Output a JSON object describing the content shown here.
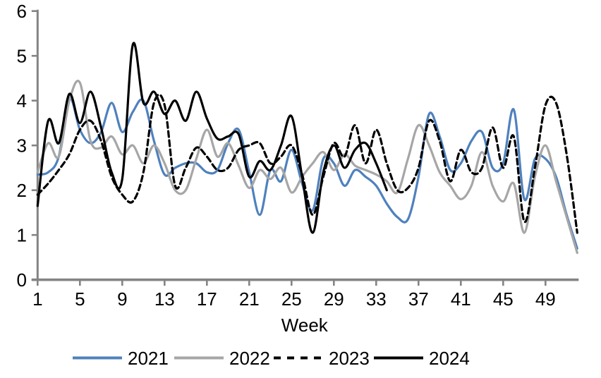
{
  "chart_data": {
    "type": "line",
    "title": "",
    "xlabel": "Week",
    "x_unit": "week",
    "x_range": [
      1,
      52
    ],
    "ylim": [
      0,
      6
    ],
    "x_tick_labels": [
      "1",
      "5",
      "9",
      "13",
      "17",
      "21",
      "25",
      "29",
      "33",
      "37",
      "41",
      "45",
      "49"
    ],
    "x_tick_weeks": [
      1,
      5,
      9,
      13,
      17,
      21,
      25,
      29,
      33,
      37,
      41,
      45,
      49
    ],
    "y_tick_labels": [
      "0",
      "1",
      "2",
      "3",
      "4",
      "5",
      "6"
    ],
    "y_tick_values": [
      0,
      1,
      2,
      3,
      4,
      5,
      6
    ],
    "grid": false,
    "legend_position": "bottom",
    "axis_color": "#848484",
    "series": [
      {
        "name": "2021",
        "color": "#4F81BD",
        "dash": "solid",
        "start_week": 1,
        "values": [
          2.35,
          2.4,
          2.75,
          4.05,
          3.35,
          3.05,
          3.3,
          3.95,
          3.3,
          3.75,
          4.0,
          3.1,
          2.35,
          2.5,
          2.6,
          2.6,
          2.4,
          2.45,
          3.05,
          3.35,
          2.4,
          1.45,
          2.45,
          2.2,
          2.9,
          2.15,
          1.55,
          2.7,
          2.6,
          2.1,
          2.45,
          2.3,
          2.1,
          1.7,
          1.4,
          1.35,
          2.3,
          3.7,
          3.2,
          2.45,
          2.6,
          3.1,
          3.3,
          2.5,
          2.6,
          3.8,
          1.8,
          2.7,
          2.7,
          2.3,
          1.45,
          0.7
        ]
      },
      {
        "name": "2022",
        "color": "#A6A6A6",
        "dash": "solid",
        "start_week": 1,
        "values": [
          2.4,
          3.05,
          2.75,
          4.0,
          4.4,
          3.1,
          2.95,
          3.2,
          2.8,
          3.0,
          2.6,
          3.0,
          2.6,
          2.0,
          2.0,
          2.7,
          3.35,
          2.75,
          3.05,
          2.55,
          2.05,
          2.45,
          2.25,
          2.5,
          1.95,
          2.3,
          2.6,
          2.85,
          2.45,
          2.8,
          2.55,
          2.45,
          2.35,
          2.2,
          1.95,
          2.7,
          3.45,
          3.0,
          2.4,
          2.1,
          1.8,
          2.1,
          2.85,
          2.1,
          1.75,
          2.15,
          1.05,
          2.3,
          3.0,
          2.2,
          1.4,
          0.6
        ]
      },
      {
        "name": "2023",
        "color": "#000000",
        "dash": "dashed",
        "start_week": 1,
        "values": [
          1.9,
          2.15,
          2.45,
          2.8,
          3.35,
          3.55,
          3.1,
          2.3,
          1.9,
          1.75,
          2.4,
          3.95,
          3.9,
          2.1,
          2.5,
          2.95,
          2.75,
          2.45,
          2.5,
          2.9,
          3.0,
          3.05,
          2.6,
          2.75,
          3.0,
          2.35,
          1.45,
          2.3,
          3.05,
          2.75,
          3.45,
          2.6,
          3.35,
          2.6,
          2.0,
          2.05,
          2.5,
          3.55,
          3.1,
          2.2,
          2.9,
          2.4,
          2.5,
          3.4,
          2.5,
          3.2,
          1.3,
          2.5,
          3.9,
          3.95,
          2.8,
          1.05
        ]
      },
      {
        "name": "2024",
        "color": "#000000",
        "dash": "solid",
        "start_week": 1,
        "values": [
          1.65,
          3.55,
          3.05,
          4.15,
          3.5,
          4.2,
          3.4,
          2.4,
          2.25,
          5.25,
          3.95,
          4.2,
          3.7,
          4.0,
          3.55,
          4.2,
          3.6,
          3.15,
          3.2,
          3.25,
          2.3,
          2.65,
          2.45,
          3.0,
          3.65,
          2.3,
          1.05,
          2.4,
          3.0,
          2.5,
          2.9,
          3.05,
          2.6,
          2.0
        ]
      }
    ],
    "legend": [
      {
        "label": "2021",
        "color": "#4F81BD",
        "dash": "solid"
      },
      {
        "label": "2022",
        "color": "#A6A6A6",
        "dash": "solid"
      },
      {
        "label": "2023",
        "color": "#000000",
        "dash": "dashed"
      },
      {
        "label": "2024",
        "color": "#000000",
        "dash": "solid"
      }
    ]
  }
}
